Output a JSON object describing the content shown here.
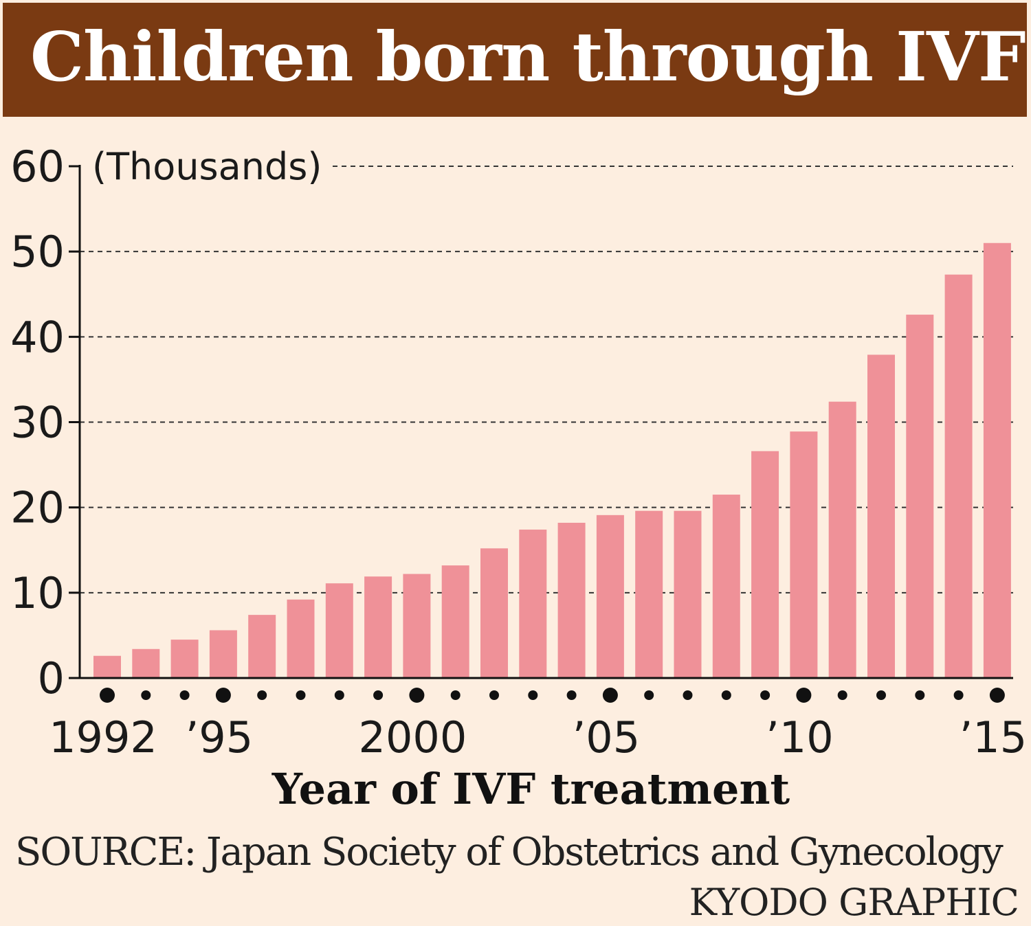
{
  "chart_data": {
    "type": "bar",
    "title": "Children born through IVF",
    "unit_label": "(Thousands)",
    "xlabel": "Year of IVF treatment",
    "ylabel": "",
    "ylim": [
      0,
      60
    ],
    "yticks": [
      "0",
      "10",
      "20",
      "30",
      "40",
      "50",
      "60"
    ],
    "categories": [
      "1992",
      "1993",
      "1994",
      "1995",
      "1996",
      "1997",
      "1998",
      "1999",
      "2000",
      "2001",
      "2002",
      "2003",
      "2004",
      "2005",
      "2006",
      "2007",
      "2008",
      "2009",
      "2010",
      "2011",
      "2012",
      "2013",
      "2014",
      "2015"
    ],
    "x_tick_labels": [
      {
        "index": 0,
        "label": "1992"
      },
      {
        "index": 3,
        "label": "’95"
      },
      {
        "index": 8,
        "label": "2000"
      },
      {
        "index": 13,
        "label": "’05"
      },
      {
        "index": 18,
        "label": "’10"
      },
      {
        "index": 23,
        "label": "’15"
      }
    ],
    "values": [
      2.6,
      3.4,
      4.5,
      5.6,
      7.4,
      9.2,
      11.1,
      11.9,
      12.2,
      13.2,
      15.2,
      17.4,
      18.2,
      19.1,
      19.6,
      19.6,
      21.5,
      26.6,
      28.9,
      32.4,
      37.9,
      42.6,
      47.3,
      51.0
    ],
    "grid": "dashed horizontal",
    "bar_color": "#ef9198",
    "source": "SOURCE: Japan Society of Obstetrics and Gynecology",
    "credit": "KYODO GRAPHIC"
  },
  "colors": {
    "title_bar": "#7a3a12",
    "background": "#fdeee0",
    "bar": "#ef9198"
  }
}
